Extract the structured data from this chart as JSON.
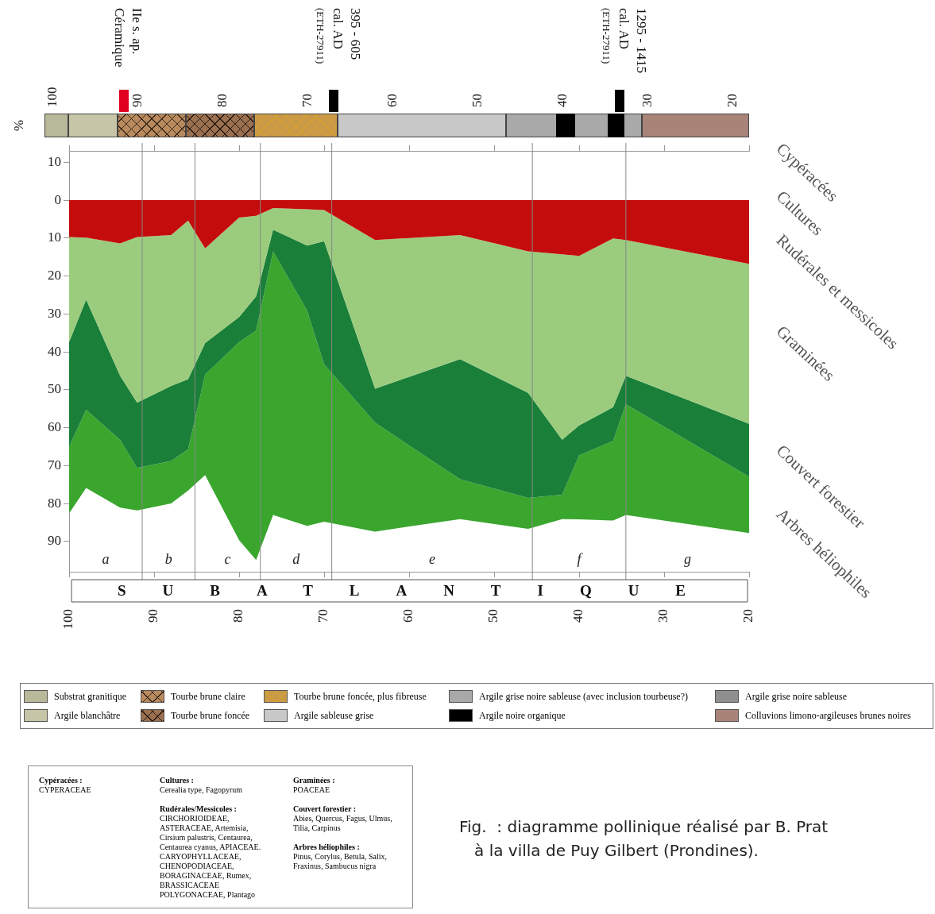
{
  "chart_data": {
    "type": "area",
    "stacked": true,
    "ylabel": "%",
    "x": [
      100,
      98,
      94,
      92,
      88,
      86,
      84,
      80,
      78,
      76,
      72,
      70,
      64,
      54,
      46,
      42,
      40,
      36,
      34.5,
      20
    ],
    "series": [
      {
        "name": "Rudérales et messicoles",
        "color": "#c40c0c",
        "values": [
          9.7,
          9.9,
          11.4,
          9.7,
          9.2,
          5.4,
          12.7,
          4.6,
          4.1,
          2.1,
          2.4,
          2.6,
          10.5,
          9.2,
          13.5,
          14.3,
          14.7,
          10.1,
          10.5,
          16.8
        ]
      },
      {
        "name": "Graminées",
        "color": "#9bcc7e",
        "values": [
          27.7,
          16.3,
          34.9,
          43.7,
          39.8,
          41.8,
          25,
          26.2,
          21.3,
          5.7,
          9.6,
          8.2,
          39.2,
          32.7,
          37.3,
          48.9,
          44.7,
          44.5,
          35.8,
          42.2
        ]
      },
      {
        "name": "Couvert forestier",
        "color": "#1a7f38",
        "values": [
          27.6,
          29.1,
          16.9,
          17.2,
          19.8,
          18.5,
          8.3,
          6.6,
          9,
          5.7,
          17.1,
          32.5,
          9,
          31.7,
          27.7,
          14.5,
          7.9,
          8.9,
          7.5,
          13.9
        ]
      },
      {
        "name": "Arbres héliophiles",
        "color": "#3aa62e",
        "values": [
          17.6,
          20.6,
          17.9,
          11.2,
          11.2,
          10.9,
          26.5,
          52.3,
          60.5,
          69.5,
          56.8,
          41.5,
          28.7,
          10.5,
          8.2,
          6.4,
          16.9,
          21,
          29.2,
          14.9
        ]
      }
    ],
    "xlim": [
      100,
      20
    ],
    "xticks": [
      100,
      90,
      80,
      70,
      60,
      50,
      40,
      30,
      20
    ],
    "x2lim": [
      100,
      20
    ],
    "x2ticks": [
      100,
      90,
      80,
      70,
      60,
      50,
      40,
      30,
      20
    ],
    "ylim": [
      98,
      -13
    ],
    "yticks": [
      {
        "value": -10,
        "label": "10"
      },
      0,
      10,
      20,
      30,
      40,
      50,
      60,
      70,
      80,
      90
    ],
    "ref_lines": [
      {
        "axis": "x",
        "value": 91.4
      },
      {
        "axis": "x",
        "value": 85.2
      },
      {
        "axis": "x",
        "value": 77.5
      },
      {
        "axis": "x",
        "value": 69.1
      },
      {
        "axis": "x",
        "value": 45.5
      },
      {
        "axis": "x",
        "value": 34.5
      }
    ],
    "annotations": [
      "IIe s. ap.\nCéramique",
      "395 - 605\ncal. AD\n(ETH-27911)",
      "1295 - 1415\ncal. AD\n(ETH-27911)",
      "SUBATLANTIQUE",
      "a",
      "b",
      "c",
      "d",
      "e",
      "f",
      "g",
      "Cypéracées",
      "Cultures",
      "Substrat granitique",
      "Tourbe brune claire",
      "Tourbe brune foncée, plus fibreuse",
      "Argile grise noire sableuse (avec inclusion tourbeuse?)",
      "Argile grise noire sableuse",
      "Argile blanchâtre",
      "Tourbe brune foncée",
      "Argile sableuse grise",
      "Argile noire organique",
      "Colluvions limono-argileuses brunes noires",
      "Cypéracées :\nCYPERACEAE",
      "Cultures :\nCerealia type, Fagopyrum",
      "Rudérales/Messicoles :\nCIRCHORIOIDEAE,\nASTERACEAE, Artemisia,\nCirsium palustris, Centaurea,\nCentaurea cyanus, APIACEAE.\nCARYOPHYLLACEAE,\nCHENOPODIACEAE,\nBORAGINACEAE, Rumex,\nBRASSICACEAE\nPOLYGONACEAE, Plantago",
      "Graminées :\nPOACEAE",
      "Couvert forestier :\nAbies, Quercus, Fagus, Ulmus,\nTilia, Carpinus",
      "Arbres héliophiles :\nPinus, Corylus, Betula, Salix,\nFraxinus, Sambucus nigra",
      "Fig.  : diagramme pollinique réalisé par B. Prat\n   à la villa de Puy Gilbert (Prondines)."
    ]
  }
}
